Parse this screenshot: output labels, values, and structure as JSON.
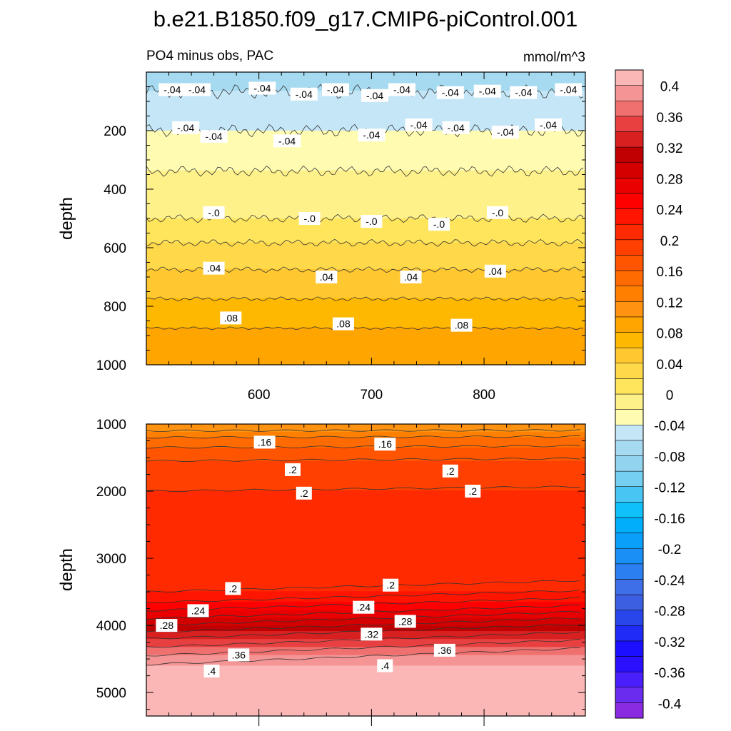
{
  "chart_data": [
    {
      "type": "heatmap",
      "title": "b.e21.B1850.f09_g17.CMIP6-piControl.001",
      "subtitle_left": "PO4 minus obs, PAC",
      "subtitle_right": "mmol/m^3",
      "ylabel": "depth",
      "xlabel": "",
      "xlim": [
        500,
        890
      ],
      "ylim": [
        0,
        1000
      ],
      "y_reversed": true,
      "x_ticks": [
        600,
        700,
        800
      ],
      "y_ticks": [
        200,
        400,
        600,
        800,
        1000
      ],
      "contour_interval": 0.02,
      "bands": [
        {
          "depth": 0,
          "value": -0.07
        },
        {
          "depth": 100,
          "value": -0.055
        },
        {
          "depth": 200,
          "value": -0.04
        },
        {
          "depth": 300,
          "value": -0.025
        },
        {
          "depth": 400,
          "value": -0.012
        },
        {
          "depth": 500,
          "value": 0.0
        },
        {
          "depth": 550,
          "value": 0.01
        },
        {
          "depth": 600,
          "value": 0.025
        },
        {
          "depth": 700,
          "value": 0.045
        },
        {
          "depth": 800,
          "value": 0.065
        },
        {
          "depth": 900,
          "value": 0.085
        },
        {
          "depth": 1000,
          "value": 0.1
        }
      ],
      "contour_labels": [
        {
          "x": 523,
          "depth": 60,
          "text": "-.04"
        },
        {
          "x": 545,
          "depth": 60,
          "text": "-.04"
        },
        {
          "x": 603,
          "depth": 55,
          "text": "-.04"
        },
        {
          "x": 640,
          "depth": 75,
          "text": "-.04"
        },
        {
          "x": 668,
          "depth": 60,
          "text": "-.04"
        },
        {
          "x": 703,
          "depth": 80,
          "text": "-.04"
        },
        {
          "x": 727,
          "depth": 60,
          "text": "-.04"
        },
        {
          "x": 770,
          "depth": 70,
          "text": "-.04"
        },
        {
          "x": 803,
          "depth": 65,
          "text": "-.04"
        },
        {
          "x": 835,
          "depth": 70,
          "text": "-.04"
        },
        {
          "x": 875,
          "depth": 60,
          "text": "-.04"
        },
        {
          "x": 535,
          "depth": 190,
          "text": "-.04"
        },
        {
          "x": 560,
          "depth": 220,
          "text": "-.04"
        },
        {
          "x": 625,
          "depth": 235,
          "text": "-.04"
        },
        {
          "x": 700,
          "depth": 215,
          "text": "-.04"
        },
        {
          "x": 742,
          "depth": 180,
          "text": "-.04"
        },
        {
          "x": 775,
          "depth": 190,
          "text": "-.04"
        },
        {
          "x": 819,
          "depth": 205,
          "text": "-.04"
        },
        {
          "x": 857,
          "depth": 180,
          "text": "-.04"
        },
        {
          "x": 560,
          "depth": 480,
          "text": "-.0"
        },
        {
          "x": 645,
          "depth": 500,
          "text": "-.0"
        },
        {
          "x": 700,
          "depth": 510,
          "text": "-.0"
        },
        {
          "x": 760,
          "depth": 520,
          "text": "-.0"
        },
        {
          "x": 812,
          "depth": 480,
          "text": "-.0"
        },
        {
          "x": 560,
          "depth": 670,
          "text": ".04"
        },
        {
          "x": 660,
          "depth": 700,
          "text": ".04"
        },
        {
          "x": 735,
          "depth": 700,
          "text": ".04"
        },
        {
          "x": 810,
          "depth": 680,
          "text": ".04"
        },
        {
          "x": 575,
          "depth": 840,
          "text": ".08"
        },
        {
          "x": 675,
          "depth": 860,
          "text": ".08"
        },
        {
          "x": 780,
          "depth": 865,
          "text": ".08"
        }
      ]
    },
    {
      "type": "heatmap",
      "ylabel": "depth",
      "xlabel": "",
      "xlim": [
        500,
        890
      ],
      "ylim": [
        1000,
        5350
      ],
      "y_reversed": true,
      "x_ticks": [
        600,
        700,
        800
      ],
      "y_ticks": [
        1000,
        2000,
        3000,
        4000,
        5000
      ],
      "contour_interval": 0.02,
      "bands": [
        {
          "depth": 1000,
          "value": 0.1
        },
        {
          "depth": 1250,
          "value": 0.15
        },
        {
          "depth": 1600,
          "value": 0.185
        },
        {
          "depth": 2000,
          "value": 0.2
        },
        {
          "depth": 3000,
          "value": 0.2
        },
        {
          "depth": 3300,
          "value": 0.2
        },
        {
          "depth": 3600,
          "value": 0.23
        },
        {
          "depth": 3900,
          "value": 0.28
        },
        {
          "depth": 4200,
          "value": 0.34
        },
        {
          "depth": 4450,
          "value": 0.38
        },
        {
          "depth": 4650,
          "value": 0.41
        },
        {
          "depth": 5350,
          "value": 0.42
        }
      ],
      "contour_labels": [
        {
          "x": 605,
          "depth": 1270,
          "text": ".16"
        },
        {
          "x": 712,
          "depth": 1300,
          "text": ".16"
        },
        {
          "x": 630,
          "depth": 1680,
          "text": ".2"
        },
        {
          "x": 770,
          "depth": 1700,
          "text": ".2"
        },
        {
          "x": 640,
          "depth": 2030,
          "text": ".2"
        },
        {
          "x": 790,
          "depth": 2000,
          "text": ".2"
        },
        {
          "x": 577,
          "depth": 3450,
          "text": ".2"
        },
        {
          "x": 717,
          "depth": 3400,
          "text": ".2"
        },
        {
          "x": 546,
          "depth": 3780,
          "text": ".24"
        },
        {
          "x": 693,
          "depth": 3730,
          "text": ".24"
        },
        {
          "x": 518,
          "depth": 4000,
          "text": ".28"
        },
        {
          "x": 730,
          "depth": 3940,
          "text": ".28"
        },
        {
          "x": 700,
          "depth": 4130,
          "text": ".32"
        },
        {
          "x": 582,
          "depth": 4440,
          "text": ".36"
        },
        {
          "x": 765,
          "depth": 4370,
          "text": ".36"
        },
        {
          "x": 558,
          "depth": 4680,
          "text": ".4"
        },
        {
          "x": 712,
          "depth": 4600,
          "text": ".4"
        }
      ]
    }
  ],
  "colorbar": {
    "levels": [
      -0.42,
      -0.4,
      -0.38,
      -0.36,
      -0.34,
      -0.32,
      -0.3,
      -0.28,
      -0.26,
      -0.24,
      -0.22,
      -0.2,
      -0.18,
      -0.16,
      -0.14,
      -0.12,
      -0.1,
      -0.08,
      -0.06,
      -0.04,
      -0.02,
      0,
      0.02,
      0.04,
      0.06,
      0.08,
      0.1,
      0.12,
      0.14,
      0.16,
      0.18,
      0.2,
      0.22,
      0.24,
      0.26,
      0.28,
      0.3,
      0.32,
      0.34,
      0.36,
      0.38,
      0.4,
      0.42
    ],
    "colors_bottom_to_top": [
      "#8a2be2",
      "#6a2cee",
      "#4a1ffb",
      "#2a10ff",
      "#1a10ff",
      "#1e2cf5",
      "#2846ea",
      "#3c5ee0",
      "#3e6fe8",
      "#2b7ff0",
      "#1a8ff5",
      "#0a9ff8",
      "#00aefa",
      "#10c0f8",
      "#48c5f2",
      "#74cff0",
      "#92d4f0",
      "#a5daf0",
      "#c4e6f7",
      "#fffcb2",
      "#fff18a",
      "#ffe55c",
      "#ffd94a",
      "#ffc830",
      "#ffb800",
      "#ffa500",
      "#ff9210",
      "#ff8000",
      "#ff6b00",
      "#ff5500",
      "#ff4000",
      "#ff2a00",
      "#ff1500",
      "#ff0000",
      "#ea0000",
      "#d40000",
      "#c00000",
      "#d82020",
      "#e84040",
      "#f07070",
      "#f59494",
      "#fbb6b6"
    ],
    "tick_labels": [
      {
        "value": -0.4,
        "label": "-0.4"
      },
      {
        "value": -0.36,
        "label": "-0.36"
      },
      {
        "value": -0.32,
        "label": "-0.32"
      },
      {
        "value": -0.28,
        "label": "-0.28"
      },
      {
        "value": -0.24,
        "label": "-0.24"
      },
      {
        "value": -0.2,
        "label": "-0.2"
      },
      {
        "value": -0.16,
        "label": "-0.16"
      },
      {
        "value": -0.12,
        "label": "-0.12"
      },
      {
        "value": -0.08,
        "label": "-0.08"
      },
      {
        "value": -0.04,
        "label": "-0.04"
      },
      {
        "value": 0,
        "label": "0"
      },
      {
        "value": 0.04,
        "label": "0.04"
      },
      {
        "value": 0.08,
        "label": "0.08"
      },
      {
        "value": 0.12,
        "label": "0.12"
      },
      {
        "value": 0.16,
        "label": "0.16"
      },
      {
        "value": 0.2,
        "label": "0.2"
      },
      {
        "value": 0.24,
        "label": "0.24"
      },
      {
        "value": 0.28,
        "label": "0.28"
      },
      {
        "value": 0.32,
        "label": "0.32"
      },
      {
        "value": 0.36,
        "label": "0.36"
      },
      {
        "value": 0.4,
        "label": "0.4"
      }
    ]
  }
}
